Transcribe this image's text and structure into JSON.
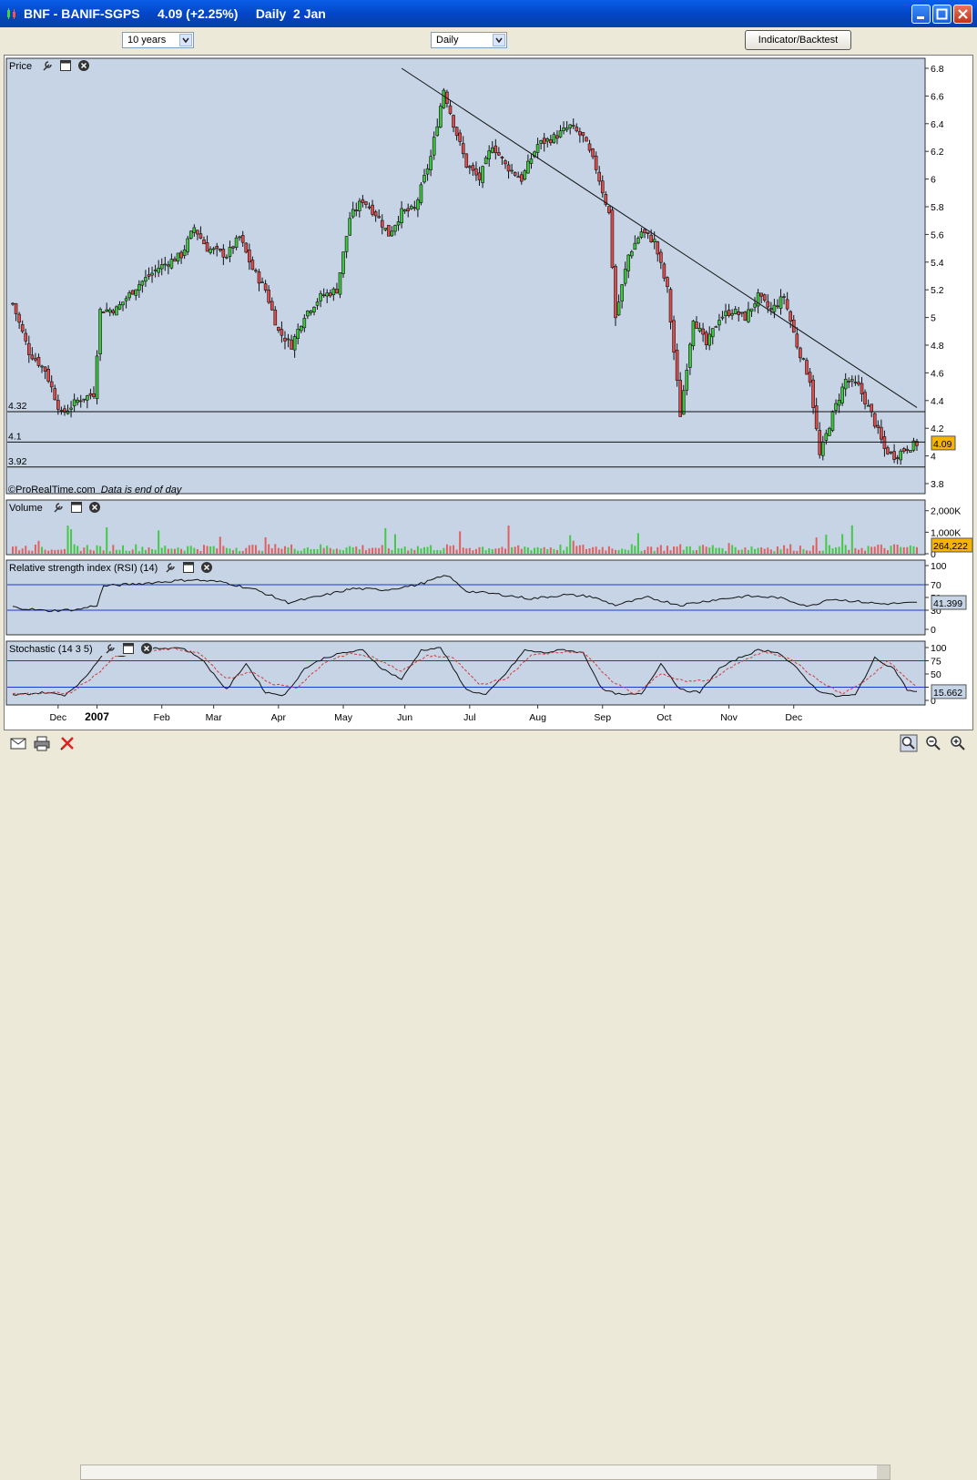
{
  "window": {
    "title": "BNF - BANIF-SGPS",
    "price_text": "4.09 (+2.25%)",
    "period_text": "Daily  2 Jan"
  },
  "toolbar": {
    "range_select": "10 years",
    "interval_select": "Daily",
    "indicator_button": "Indicator/Backtest"
  },
  "panels": {
    "price": {
      "label": "Price",
      "credit": "©ProRealTime.com",
      "credit_note": "Data is end of day"
    },
    "volume": {
      "label": "Volume"
    },
    "rsi": {
      "label": "Relative strength index (RSI) (14)"
    },
    "stoch": {
      "label": "Stochastic (14 3 5)"
    }
  },
  "chart_data": [
    {
      "type": "candlestick",
      "title": "Price",
      "ylim": [
        3.8,
        6.8
      ],
      "yticks": [
        "6.8",
        "6.6",
        "6.4",
        "6.2",
        "6",
        "5.8",
        "5.6",
        "5.4",
        "5.2",
        "5",
        "4.8",
        "4.6",
        "4.4",
        "4.2",
        "4",
        "3.8"
      ],
      "x_labels": [
        "Dec",
        "2007",
        "Feb",
        "Mar",
        "Apr",
        "May",
        "Jun",
        "Jul",
        "Aug",
        "Sep",
        "Oct",
        "Nov",
        "Dec"
      ],
      "close_series": {
        "name": "close",
        "points": [
          [
            0,
            5.1
          ],
          [
            5,
            4.75
          ],
          [
            10,
            4.62
          ],
          [
            15,
            4.3
          ],
          [
            20,
            4.4
          ],
          [
            25,
            4.45
          ],
          [
            27,
            5.05
          ],
          [
            32,
            5.06
          ],
          [
            38,
            5.22
          ],
          [
            45,
            5.36
          ],
          [
            52,
            5.45
          ],
          [
            56,
            5.65
          ],
          [
            60,
            5.5
          ],
          [
            66,
            5.45
          ],
          [
            70,
            5.58
          ],
          [
            74,
            5.35
          ],
          [
            78,
            5.2
          ],
          [
            82,
            4.9
          ],
          [
            86,
            4.8
          ],
          [
            90,
            5.02
          ],
          [
            95,
            5.15
          ],
          [
            100,
            5.2
          ],
          [
            104,
            5.72
          ],
          [
            108,
            5.85
          ],
          [
            112,
            5.75
          ],
          [
            116,
            5.6
          ],
          [
            120,
            5.76
          ],
          [
            124,
            5.78
          ],
          [
            129,
            6.16
          ],
          [
            133,
            6.65
          ],
          [
            136,
            6.4
          ],
          [
            140,
            6.1
          ],
          [
            144,
            6.0
          ],
          [
            148,
            6.25
          ],
          [
            152,
            6.1
          ],
          [
            157,
            6.0
          ],
          [
            162,
            6.25
          ],
          [
            167,
            6.3
          ],
          [
            172,
            6.38
          ],
          [
            176,
            6.3
          ],
          [
            180,
            6.08
          ],
          [
            184,
            5.75
          ],
          [
            186,
            5.0
          ],
          [
            190,
            5.45
          ],
          [
            194,
            5.62
          ],
          [
            198,
            5.55
          ],
          [
            202,
            5.2
          ],
          [
            206,
            4.3
          ],
          [
            210,
            5.0
          ],
          [
            214,
            4.8
          ],
          [
            218,
            5.0
          ],
          [
            222,
            5.05
          ],
          [
            226,
            5.0
          ],
          [
            230,
            5.15
          ],
          [
            234,
            5.05
          ],
          [
            238,
            5.15
          ],
          [
            242,
            4.8
          ],
          [
            246,
            4.55
          ],
          [
            249,
            4.0
          ],
          [
            253,
            4.3
          ],
          [
            257,
            4.55
          ],
          [
            261,
            4.5
          ],
          [
            265,
            4.3
          ],
          [
            269,
            4.05
          ],
          [
            272,
            4.0
          ],
          [
            276,
            4.06
          ],
          [
            279,
            4.09
          ]
        ]
      },
      "trendline": {
        "start": [
          120,
          6.8
        ],
        "end": [
          279,
          4.35
        ]
      },
      "horizontal_lines": [
        {
          "value": 4.32,
          "label": "4.32"
        },
        {
          "value": 4.1,
          "label": "4.1"
        },
        {
          "value": 3.92,
          "label": "3.92"
        }
      ],
      "last_value": "4.09",
      "last_color": "#f4b400"
    },
    {
      "type": "bar",
      "title": "Volume",
      "yticks": [
        "2,000K",
        "1,000K",
        "0"
      ],
      "ylim": [
        0,
        2200
      ],
      "last_value": "264,222",
      "last_color": "#f4b400",
      "colors": {
        "up": "#45c845",
        "down": "#e06060"
      }
    },
    {
      "type": "line",
      "title": "Relative strength index (RSI) (14)",
      "ylim": [
        0,
        100
      ],
      "yticks": [
        "100",
        "70",
        "50",
        "30",
        "0"
      ],
      "levels": [
        70,
        30
      ],
      "last_value": "41.399",
      "series": [
        {
          "name": "RSI",
          "points": [
            [
              0,
              35
            ],
            [
              10,
              29
            ],
            [
              20,
              31
            ],
            [
              26,
              38
            ],
            [
              28,
              68
            ],
            [
              40,
              72
            ],
            [
              55,
              78
            ],
            [
              65,
              74
            ],
            [
              75,
              62
            ],
            [
              85,
              42
            ],
            [
              95,
              52
            ],
            [
              105,
              64
            ],
            [
              115,
              62
            ],
            [
              125,
              70
            ],
            [
              134,
              85
            ],
            [
              140,
              60
            ],
            [
              150,
              55
            ],
            [
              160,
              48
            ],
            [
              170,
              54
            ],
            [
              178,
              52
            ],
            [
              186,
              38
            ],
            [
              196,
              50
            ],
            [
              206,
              38
            ],
            [
              216,
              46
            ],
            [
              226,
              52
            ],
            [
              236,
              50
            ],
            [
              246,
              36
            ],
            [
              252,
              48
            ],
            [
              260,
              44
            ],
            [
              268,
              40
            ],
            [
              279,
              41.4
            ]
          ]
        }
      ]
    },
    {
      "type": "line",
      "title": "Stochastic (14 3 5)",
      "ylim": [
        0,
        100
      ],
      "yticks": [
        "100",
        "75",
        "50",
        "25",
        "0"
      ],
      "levels": [
        75,
        25
      ],
      "last_value": "15.662",
      "series": [
        {
          "name": "%K",
          "points": [
            [
              0,
              10
            ],
            [
              10,
              15
            ],
            [
              16,
              10
            ],
            [
              22,
              40
            ],
            [
              28,
              90
            ],
            [
              34,
              85
            ],
            [
              42,
              98
            ],
            [
              52,
              100
            ],
            [
              58,
              80
            ],
            [
              66,
              20
            ],
            [
              72,
              70
            ],
            [
              78,
              15
            ],
            [
              84,
              10
            ],
            [
              90,
              60
            ],
            [
              96,
              80
            ],
            [
              102,
              90
            ],
            [
              108,
              95
            ],
            [
              114,
              60
            ],
            [
              120,
              40
            ],
            [
              126,
              95
            ],
            [
              132,
              100
            ],
            [
              140,
              20
            ],
            [
              146,
              10
            ],
            [
              152,
              50
            ],
            [
              158,
              95
            ],
            [
              164,
              90
            ],
            [
              170,
              96
            ],
            [
              176,
              90
            ],
            [
              182,
              20
            ],
            [
              188,
              10
            ],
            [
              194,
              12
            ],
            [
              200,
              70
            ],
            [
              206,
              20
            ],
            [
              212,
              15
            ],
            [
              218,
              60
            ],
            [
              224,
              80
            ],
            [
              230,
              95
            ],
            [
              236,
              92
            ],
            [
              242,
              60
            ],
            [
              248,
              20
            ],
            [
              254,
              8
            ],
            [
              260,
              10
            ],
            [
              266,
              80
            ],
            [
              272,
              60
            ],
            [
              276,
              20
            ],
            [
              279,
              15.7
            ]
          ]
        },
        {
          "name": "%D",
          "points": [
            [
              0,
              12
            ],
            [
              12,
              14
            ],
            [
              18,
              14
            ],
            [
              26,
              50
            ],
            [
              32,
              85
            ],
            [
              40,
              92
            ],
            [
              50,
              98
            ],
            [
              58,
              88
            ],
            [
              66,
              40
            ],
            [
              74,
              55
            ],
            [
              80,
              30
            ],
            [
              88,
              25
            ],
            [
              96,
              70
            ],
            [
              104,
              90
            ],
            [
              112,
              80
            ],
            [
              120,
              55
            ],
            [
              128,
              85
            ],
            [
              136,
              80
            ],
            [
              144,
              30
            ],
            [
              152,
              40
            ],
            [
              160,
              85
            ],
            [
              168,
              92
            ],
            [
              176,
              92
            ],
            [
              184,
              40
            ],
            [
              192,
              12
            ],
            [
              200,
              50
            ],
            [
              208,
              35
            ],
            [
              216,
              40
            ],
            [
              224,
              72
            ],
            [
              232,
              92
            ],
            [
              240,
              80
            ],
            [
              248,
              40
            ],
            [
              256,
              12
            ],
            [
              264,
              40
            ],
            [
              270,
              75
            ],
            [
              276,
              40
            ],
            [
              279,
              25
            ]
          ]
        }
      ]
    }
  ]
}
